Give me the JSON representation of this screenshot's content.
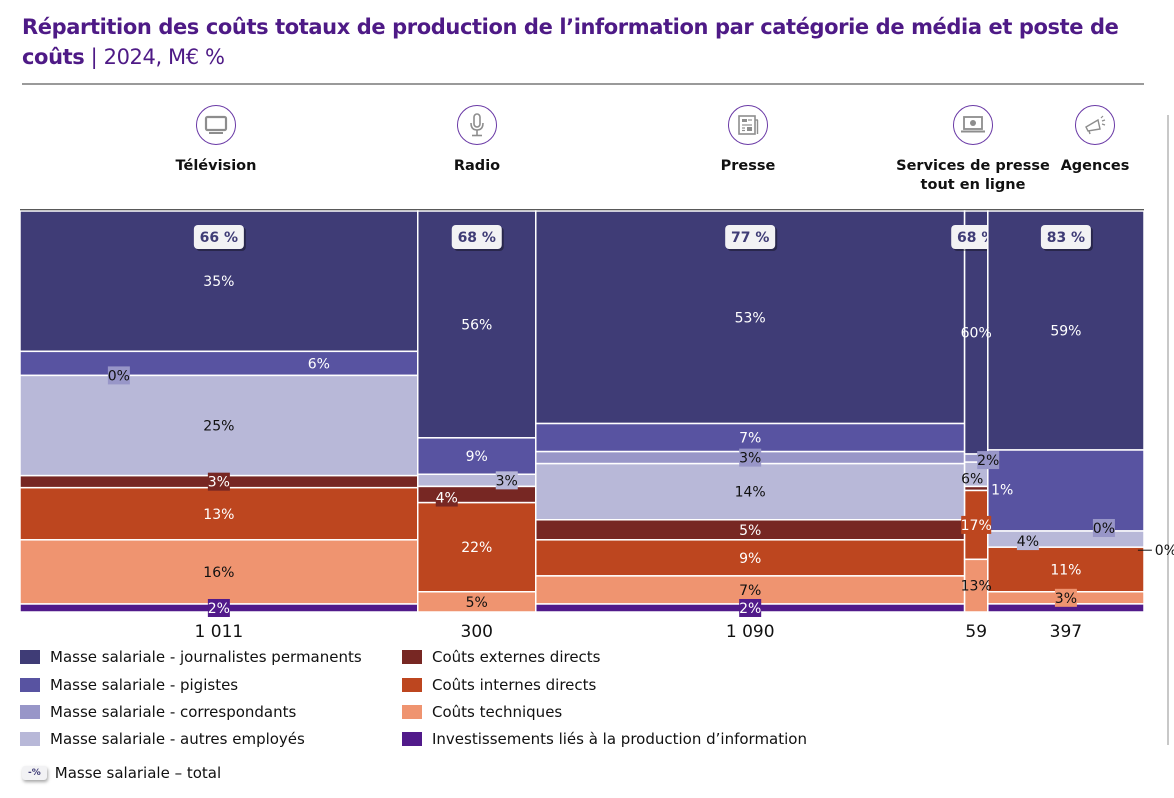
{
  "title": {
    "bold": "Répartition des coûts totaux de production de l’information par catégorie de média et poste de coûts",
    "separator": " | ",
    "unit": "2024, M€ %"
  },
  "categories": [
    {
      "name": "Télévision",
      "icon": "tv-icon"
    },
    {
      "name": "Radio",
      "icon": "microphone-icon"
    },
    {
      "name": "Presse",
      "icon": "newspaper-icon"
    },
    {
      "name": "Services de presse tout en ligne",
      "icon": "laptop-icon"
    },
    {
      "name": "Agences",
      "icon": "megaphone-icon"
    }
  ],
  "colors": {
    "journalistes": "#3f3c76",
    "pigistes": "#5853a1",
    "correspondants": "#9896c8",
    "autres": "#b8b8d8",
    "externes": "#772723",
    "internes": "#bd461f",
    "techniques": "#ef9470",
    "investissements": "#511a8a"
  },
  "chart_data": {
    "type": "marimekko",
    "title": "Répartition des coûts totaux de production de l’information par catégorie de média et poste de coûts | 2024, M€ %",
    "categories": [
      "Télévision",
      "Radio",
      "Presse",
      "Services de presse tout en ligne",
      "Agences"
    ],
    "totals_meur": [
      1011,
      300,
      1090,
      59,
      397
    ],
    "totals_labels": [
      "1 011",
      "300",
      "1 090",
      "59",
      "397"
    ],
    "masse_salariale_total_pct": [
      66,
      68,
      77,
      68,
      83
    ],
    "masse_salariale_total_labels": [
      "66 %",
      "68 %",
      "77 %",
      "68 %",
      "83 %"
    ],
    "series": [
      {
        "key": "journalistes",
        "name": "Masse salariale - journalistes permanents",
        "values": [
          35,
          56,
          53,
          60,
          59
        ],
        "labels": [
          "35%",
          "56%",
          "53%",
          "60%",
          "59%"
        ]
      },
      {
        "key": "pigistes",
        "name": "Masse salariale - pigistes",
        "values": [
          6,
          9,
          7,
          0,
          20
        ],
        "labels": [
          "6%",
          "9%",
          "7%",
          "",
          ""
        ]
      },
      {
        "key": "correspondants",
        "name": "Masse salariale - correspondants",
        "values": [
          0,
          0,
          3,
          2,
          0
        ],
        "labels": [
          "0%",
          "",
          "3%",
          "2%",
          "0%"
        ]
      },
      {
        "key": "autres",
        "name": "Masse salariale - autres employés",
        "values": [
          25,
          3,
          14,
          6,
          4
        ],
        "labels": [
          "25%",
          "3%",
          "14%",
          "6%",
          "4%"
        ]
      },
      {
        "key": "externes",
        "name": "Coûts externes directs",
        "values": [
          3,
          4,
          5,
          1,
          0
        ],
        "labels": [
          "3%",
          "4%",
          "5%",
          "1%",
          "0%"
        ]
      },
      {
        "key": "internes",
        "name": "Coûts internes directs",
        "values": [
          13,
          22,
          9,
          17,
          11
        ],
        "labels": [
          "13%",
          "22%",
          "9%",
          "17%",
          "11%"
        ]
      },
      {
        "key": "techniques",
        "name": "Coûts techniques",
        "values": [
          16,
          5,
          7,
          13,
          3
        ],
        "labels": [
          "16%",
          "5%",
          "7%",
          "13%",
          "3%"
        ]
      },
      {
        "key": "investissements",
        "name": "Investissements liés à la production d’information",
        "values": [
          2,
          0,
          2,
          0,
          2
        ],
        "labels": [
          "2%",
          "",
          "2%",
          "",
          ""
        ]
      }
    ],
    "xlabel": "",
    "ylabel": "",
    "ylim": [
      0,
      100
    ],
    "legend_position": "bottom"
  },
  "legend": {
    "total_badge": "-%",
    "total_label": "Masse salariale – total"
  }
}
